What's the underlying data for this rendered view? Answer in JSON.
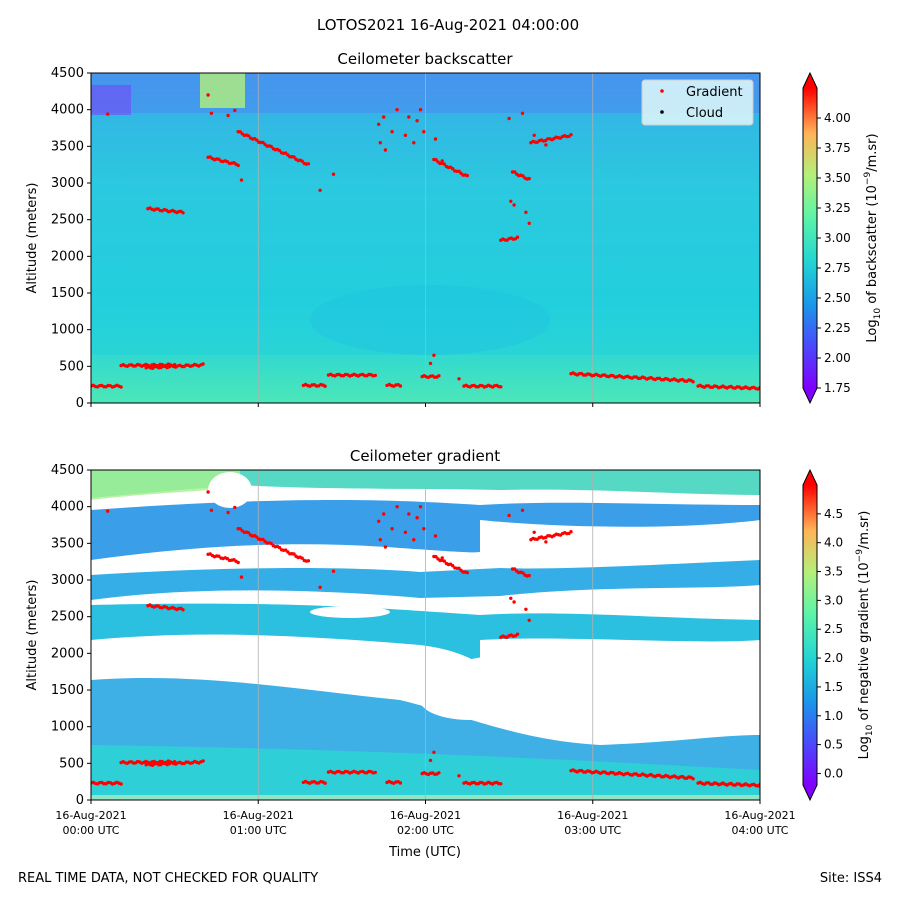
{
  "figure": {
    "suptitle": "LOTOS2021 16-Aug-2021 04:00:00",
    "footer_left": "REAL TIME DATA, NOT CHECKED FOR QUALITY",
    "footer_right": "Site: ISS4",
    "xlabel": "Time (UTC)",
    "x_ticks": [
      [
        "16-Aug-2021",
        "00:00 UTC"
      ],
      [
        "16-Aug-2021",
        "01:00 UTC"
      ],
      [
        "16-Aug-2021",
        "02:00 UTC"
      ],
      [
        "16-Aug-2021",
        "03:00 UTC"
      ],
      [
        "16-Aug-2021",
        "04:00 UTC"
      ]
    ]
  },
  "chart_data": [
    {
      "type": "heatmap",
      "title": "Ceilometer backscatter",
      "ylabel": "Altitude (meters)",
      "xlabel": "",
      "xlim_hours": [
        0,
        4
      ],
      "ylim": [
        0,
        4500
      ],
      "y_ticks": [
        0,
        500,
        1000,
        1500,
        2000,
        2500,
        3000,
        3500,
        4000,
        4500
      ],
      "vertical_grid_at_hours": [
        1,
        2,
        3
      ],
      "colormap": "rainbow",
      "colorbar": {
        "label": "Log10 of backscatter (10^-9/m.sr)",
        "range": [
          1.75,
          4.25
        ],
        "ticks": [
          "1.75",
          "2.00",
          "2.25",
          "2.50",
          "2.75",
          "3.00",
          "3.25",
          "3.50",
          "3.75",
          "4.00"
        ]
      },
      "dominant_value_approx": 2.5,
      "legend": {
        "placement": "top-right",
        "entries": [
          {
            "label": "Gradient",
            "color": "#ff0000"
          },
          {
            "label": "Cloud",
            "color": "#000000"
          }
        ]
      },
      "gradient_points": "see series.gradient"
    },
    {
      "type": "heatmap",
      "title": "Ceilometer gradient",
      "ylabel": "Altitude (meters)",
      "xlabel": "Time (UTC)",
      "xlim_hours": [
        0,
        4
      ],
      "ylim": [
        0,
        4500
      ],
      "y_ticks": [
        0,
        500,
        1000,
        1500,
        2000,
        2500,
        3000,
        3500,
        4000,
        4500
      ],
      "vertical_grid_at_hours": [
        1,
        2,
        3
      ],
      "colormap": "rainbow",
      "colorbar": {
        "label": "Log10 of negative gradient (10^-9/m.sr)",
        "range": [
          -0.2,
          5.0
        ],
        "ticks": [
          "0.0",
          "0.5",
          "1.0",
          "1.5",
          "2.0",
          "2.5",
          "3.0",
          "3.5",
          "4.0",
          "4.5"
        ]
      },
      "blank_regions_are_no_data": true,
      "gradient_points": "see series.gradient"
    }
  ],
  "series": {
    "gradient": {
      "name": "Gradient",
      "color": "#ff0000",
      "segments": [
        {
          "t": [
            0.0,
            0.18
          ],
          "alt": [
            230,
            230
          ]
        },
        {
          "t": [
            0.18,
            0.5
          ],
          "alt": [
            510,
            520
          ]
        },
        {
          "t": [
            0.33,
            0.67
          ],
          "alt": [
            480,
            520
          ]
        },
        {
          "t": [
            0.34,
            0.55
          ],
          "alt": [
            2650,
            2600
          ]
        },
        {
          "t": [
            0.7,
            0.88
          ],
          "alt": [
            3350,
            3250
          ]
        },
        {
          "t": [
            0.88,
            1.3
          ],
          "alt": [
            3700,
            3250
          ]
        },
        {
          "t": [
            1.27,
            1.4
          ],
          "alt": [
            240,
            240
          ]
        },
        {
          "t": [
            1.42,
            1.7
          ],
          "alt": [
            380,
            380
          ]
        },
        {
          "t": [
            1.77,
            1.85
          ],
          "alt": [
            240,
            240
          ]
        },
        {
          "t": [
            1.98,
            2.08
          ],
          "alt": [
            360,
            360
          ]
        },
        {
          "t": [
            2.05,
            2.25
          ],
          "alt": [
            3320,
            3090
          ]
        },
        {
          "t": [
            2.23,
            2.45
          ],
          "alt": [
            230,
            230
          ]
        },
        {
          "t": [
            2.45,
            2.55
          ],
          "alt": [
            2220,
            2250
          ]
        },
        {
          "t": [
            2.52,
            2.62
          ],
          "alt": [
            3150,
            3050
          ]
        },
        {
          "t": [
            2.63,
            2.87
          ],
          "alt": [
            3550,
            3650
          ]
        },
        {
          "t": [
            2.87,
            3.6
          ],
          "alt": [
            400,
            300
          ]
        },
        {
          "t": [
            3.63,
            4.0
          ],
          "alt": [
            230,
            200
          ]
        }
      ],
      "scatter": [
        [
          0.1,
          3940
        ],
        [
          0.7,
          4200
        ],
        [
          0.72,
          3950
        ],
        [
          0.82,
          3920
        ],
        [
          0.86,
          3990
        ],
        [
          0.9,
          3040
        ],
        [
          1.37,
          2900
        ],
        [
          1.45,
          3120
        ],
        [
          1.72,
          3800
        ],
        [
          1.75,
          3900
        ],
        [
          1.73,
          3550
        ],
        [
          1.76,
          3450
        ],
        [
          1.8,
          3700
        ],
        [
          1.83,
          4000
        ],
        [
          1.88,
          3650
        ],
        [
          1.9,
          3900
        ],
        [
          1.93,
          3550
        ],
        [
          1.95,
          3850
        ],
        [
          1.97,
          4000
        ],
        [
          1.99,
          3700
        ],
        [
          2.03,
          540
        ],
        [
          2.05,
          650
        ],
        [
          2.06,
          3600
        ],
        [
          2.1,
          3300
        ],
        [
          2.2,
          330
        ],
        [
          2.5,
          3880
        ],
        [
          2.51,
          2750
        ],
        [
          2.53,
          2700
        ],
        [
          2.58,
          3950
        ],
        [
          2.6,
          2600
        ],
        [
          2.62,
          2450
        ],
        [
          2.65,
          3650
        ],
        [
          2.72,
          3520
        ]
      ]
    }
  }
}
